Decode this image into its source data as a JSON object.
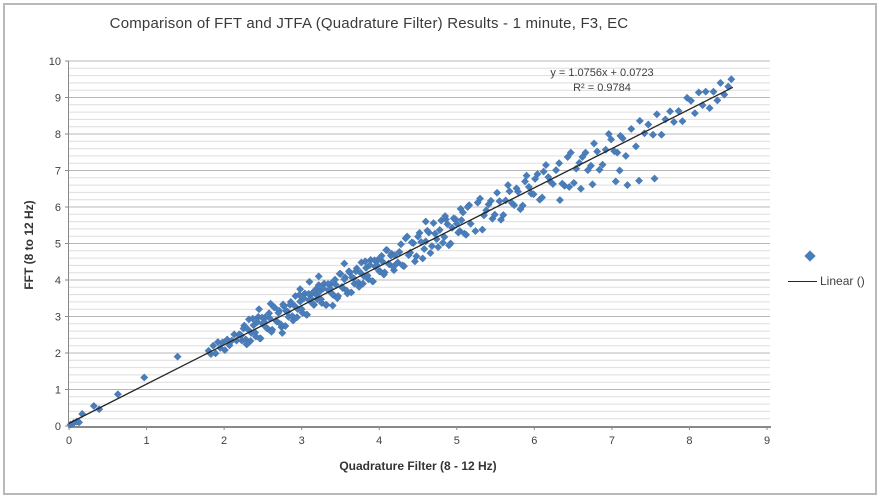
{
  "window": {
    "background": "#ffffff",
    "border_color": "#b9b9b9"
  },
  "chart_data": {
    "type": "scatter",
    "title": "Comparison of FFT and JTFA (Quadrature Filter) Results - 1 minute, F3, EC",
    "xlabel": "Quadrature Filter (8 - 12 Hz)",
    "ylabel": "FFT (8 to 12 Hz)",
    "xlim": [
      0,
      9
    ],
    "ylim": [
      0,
      10
    ],
    "x_ticks": [
      0,
      1,
      2,
      3,
      4,
      5,
      6,
      7,
      8,
      9
    ],
    "y_ticks": [
      0,
      1,
      2,
      3,
      4,
      5,
      6,
      7,
      8,
      9,
      10
    ],
    "y_minor_unit": 0.2,
    "grid": "horizontal-only",
    "legend": {
      "position": "right",
      "series_label": "",
      "line_label": "Linear ()"
    },
    "annotation": {
      "equation": "y = 1.0756x + 0.0723",
      "r_squared": "R² = 0.9784"
    },
    "trendline": {
      "slope": 1.0756,
      "intercept": 0.0723,
      "x_start": 0,
      "x_end": 8.56
    },
    "colors": {
      "marker": "#4a7ebb",
      "marker_edge": "#3d6ca6",
      "trendline": "#262626",
      "gridline_major": "#b8b8b8",
      "gridline_minor": "#dddddd",
      "axis_line": "#898989",
      "text": "#3f3f3f"
    },
    "points": [
      [
        0.02,
        0.04
      ],
      [
        0.06,
        0.08
      ],
      [
        0.1,
        0.12
      ],
      [
        0.13,
        0.1
      ],
      [
        0.17,
        0.33
      ],
      [
        0.32,
        0.55
      ],
      [
        0.39,
        0.46
      ],
      [
        0.63,
        0.87
      ],
      [
        0.97,
        1.33
      ],
      [
        1.4,
        1.9
      ],
      [
        1.8,
        2.06
      ],
      [
        1.83,
        1.97
      ],
      [
        1.86,
        2.2
      ],
      [
        1.89,
        1.99
      ],
      [
        1.92,
        2.3
      ],
      [
        1.95,
        2.14
      ],
      [
        1.98,
        2.29
      ],
      [
        2.01,
        2.08
      ],
      [
        2.04,
        2.37
      ],
      [
        2.07,
        2.21
      ],
      [
        2.1,
        2.34
      ],
      [
        2.13,
        2.51
      ],
      [
        2.16,
        2.34
      ],
      [
        2.19,
        2.5
      ],
      [
        2.2,
        2.51
      ],
      [
        2.23,
        2.34
      ],
      [
        2.26,
        2.75
      ],
      [
        2.29,
        2.24
      ],
      [
        2.32,
        2.92
      ],
      [
        2.35,
        2.55
      ],
      [
        2.38,
        2.76
      ],
      [
        2.41,
        2.45
      ],
      [
        2.44,
        2.99
      ],
      [
        2.47,
        2.4
      ],
      [
        2.5,
        2.79
      ],
      [
        2.53,
        2.98
      ],
      [
        2.56,
        2.67
      ],
      [
        2.59,
        2.95
      ],
      [
        2.62,
        2.64
      ],
      [
        2.65,
        3.25
      ],
      [
        2.68,
        2.86
      ],
      [
        2.71,
        3.16
      ],
      [
        2.74,
        2.71
      ],
      [
        2.77,
        3.28
      ],
      [
        2.8,
        3.15
      ],
      [
        2.83,
        2.99
      ],
      [
        2.86,
        3.4
      ],
      [
        2.89,
        2.89
      ],
      [
        2.92,
        3.56
      ],
      [
        2.95,
        3.2
      ],
      [
        2.98,
        3.41
      ],
      [
        3.01,
        3.1
      ],
      [
        3.04,
        3.63
      ],
      [
        3.07,
        3.05
      ],
      [
        3.1,
        3.44
      ],
      [
        3.13,
        3.63
      ],
      [
        3.16,
        3.32
      ],
      [
        3.19,
        3.59
      ],
      [
        2.22,
        2.48
      ],
      [
        2.25,
        2.67
      ],
      [
        2.28,
        2.37
      ],
      [
        2.31,
        2.64
      ],
      [
        2.34,
        2.33
      ],
      [
        2.37,
        2.94
      ],
      [
        2.4,
        2.56
      ],
      [
        2.43,
        2.85
      ],
      [
        2.46,
        2.4
      ],
      [
        2.49,
        2.97
      ],
      [
        2.52,
        2.85
      ],
      [
        2.55,
        2.68
      ],
      [
        2.58,
        3.09
      ],
      [
        2.61,
        2.58
      ],
      [
        2.64,
        3.26
      ],
      [
        2.67,
        2.89
      ],
      [
        2.7,
        3.1
      ],
      [
        2.73,
        2.79
      ],
      [
        2.76,
        3.33
      ],
      [
        2.79,
        2.74
      ],
      [
        2.82,
        3.13
      ],
      [
        2.85,
        3.32
      ],
      [
        2.88,
        3.01
      ],
      [
        2.91,
        3.29
      ],
      [
        2.94,
        2.98
      ],
      [
        2.97,
        3.59
      ],
      [
        3.0,
        3.2
      ],
      [
        3.03,
        3.5
      ],
      [
        3.06,
        3.05
      ],
      [
        3.09,
        3.62
      ],
      [
        3.12,
        3.49
      ],
      [
        3.15,
        3.33
      ],
      [
        3.18,
        3.74
      ],
      [
        3.2,
        3.47
      ],
      [
        3.23,
        3.68
      ],
      [
        3.26,
        3.37
      ],
      [
        3.29,
        3.9
      ],
      [
        3.32,
        3.32
      ],
      [
        3.35,
        3.71
      ],
      [
        3.38,
        3.9
      ],
      [
        3.41,
        3.59
      ],
      [
        3.44,
        3.87
      ],
      [
        3.47,
        3.56
      ],
      [
        3.5,
        4.17
      ],
      [
        3.53,
        3.78
      ],
      [
        3.56,
        4.07
      ],
      [
        3.59,
        3.63
      ],
      [
        3.62,
        4.2
      ],
      [
        3.65,
        4.07
      ],
      [
        3.68,
        3.9
      ],
      [
        3.71,
        4.32
      ],
      [
        3.74,
        3.81
      ],
      [
        3.77,
        4.48
      ],
      [
        3.8,
        4.11
      ],
      [
        3.83,
        4.33
      ],
      [
        3.86,
        4.02
      ],
      [
        3.89,
        4.55
      ],
      [
        3.92,
        3.96
      ],
      [
        3.95,
        4.36
      ],
      [
        3.98,
        4.55
      ],
      [
        4.01,
        4.24
      ],
      [
        4.04,
        4.51
      ],
      [
        4.07,
        4.21
      ],
      [
        4.1,
        4.82
      ],
      [
        4.13,
        4.43
      ],
      [
        4.16,
        4.72
      ],
      [
        4.19,
        4.27
      ],
      [
        3.22,
        3.86
      ],
      [
        3.25,
        3.47
      ],
      [
        3.28,
        3.77
      ],
      [
        3.31,
        3.32
      ],
      [
        3.34,
        3.89
      ],
      [
        3.37,
        3.76
      ],
      [
        3.4,
        3.6
      ],
      [
        3.43,
        4.01
      ],
      [
        3.46,
        3.5
      ],
      [
        3.49,
        4.17
      ],
      [
        3.52,
        3.81
      ],
      [
        3.55,
        4.02
      ],
      [
        3.58,
        3.71
      ],
      [
        3.61,
        4.24
      ],
      [
        3.64,
        3.66
      ],
      [
        3.67,
        4.05
      ],
      [
        3.7,
        4.24
      ],
      [
        3.73,
        3.93
      ],
      [
        3.76,
        4.2
      ],
      [
        3.79,
        3.9
      ],
      [
        3.82,
        4.51
      ],
      [
        3.85,
        4.12
      ],
      [
        3.88,
        4.41
      ],
      [
        3.91,
        3.97
      ],
      [
        3.94,
        4.54
      ],
      [
        3.97,
        4.41
      ],
      [
        4.0,
        4.24
      ],
      [
        4.03,
        4.66
      ],
      [
        4.06,
        4.15
      ],
      [
        4.09,
        4.82
      ],
      [
        4.12,
        4.45
      ],
      [
        4.15,
        4.67
      ],
      [
        4.18,
        4.36
      ],
      [
        4.2,
        4.68
      ],
      [
        4.24,
        4.48
      ],
      [
        4.28,
        4.98
      ],
      [
        4.32,
        4.38
      ],
      [
        4.36,
        5.19
      ],
      [
        4.4,
        4.75
      ],
      [
        4.44,
        5.01
      ],
      [
        4.48,
        4.65
      ],
      [
        4.52,
        5.29
      ],
      [
        4.56,
        4.59
      ],
      [
        4.6,
        5.06
      ],
      [
        4.64,
        5.3
      ],
      [
        4.68,
        4.93
      ],
      [
        4.72,
        5.27
      ],
      [
        4.76,
        4.9
      ],
      [
        4.8,
        5.63
      ],
      [
        4.84,
        5.18
      ],
      [
        4.88,
        5.53
      ],
      [
        4.92,
        5.0
      ],
      [
        4.96,
        5.69
      ],
      [
        5.0,
        5.54
      ],
      [
        5.04,
        5.34
      ],
      [
        5.08,
        5.85
      ],
      [
        5.12,
        5.24
      ],
      [
        5.16,
        6.05
      ],
      [
        4.22,
        4.44
      ],
      [
        4.26,
        4.77
      ],
      [
        4.3,
        4.4
      ],
      [
        4.34,
        5.14
      ],
      [
        4.38,
        4.68
      ],
      [
        4.42,
        5.03
      ],
      [
        4.46,
        4.51
      ],
      [
        4.5,
        5.19
      ],
      [
        4.54,
        5.04
      ],
      [
        4.58,
        4.85
      ],
      [
        4.62,
        5.35
      ],
      [
        4.66,
        4.74
      ],
      [
        4.7,
        5.56
      ],
      [
        4.74,
        5.12
      ],
      [
        4.78,
        5.37
      ],
      [
        4.82,
        5.02
      ],
      [
        4.86,
        5.66
      ],
      [
        4.9,
        4.95
      ],
      [
        4.94,
        5.43
      ],
      [
        4.98,
        5.67
      ],
      [
        5.02,
        5.3
      ],
      [
        5.06,
        5.64
      ],
      [
        5.1,
        5.27
      ],
      [
        5.14,
        6.0
      ],
      [
        5.18,
        5.54
      ],
      [
        5.24,
        5.34
      ],
      [
        5.3,
        6.23
      ],
      [
        5.35,
        5.77
      ],
      [
        5.41,
        6.07
      ],
      [
        5.46,
        5.68
      ],
      [
        5.52,
        6.39
      ],
      [
        5.57,
        5.65
      ],
      [
        5.63,
        6.18
      ],
      [
        5.68,
        6.43
      ],
      [
        5.74,
        6.05
      ],
      [
        5.79,
        6.42
      ],
      [
        5.85,
        6.04
      ],
      [
        5.9,
        6.86
      ],
      [
        5.96,
        6.37
      ],
      [
        6.01,
        6.77
      ],
      [
        6.07,
        6.2
      ],
      [
        6.12,
        6.97
      ],
      [
        6.18,
        6.82
      ],
      [
        5.27,
        6.12
      ],
      [
        5.33,
        5.38
      ],
      [
        5.38,
        5.91
      ],
      [
        5.44,
        6.17
      ],
      [
        5.49,
        5.79
      ],
      [
        5.55,
        6.16
      ],
      [
        5.6,
        5.78
      ],
      [
        5.66,
        6.6
      ],
      [
        5.71,
        6.11
      ],
      [
        5.77,
        6.51
      ],
      [
        5.82,
        5.94
      ],
      [
        5.88,
        6.7
      ],
      [
        5.93,
        6.55
      ],
      [
        5.99,
        6.35
      ],
      [
        6.04,
        6.9
      ],
      [
        6.1,
        6.26
      ],
      [
        6.15,
        7.15
      ],
      [
        6.21,
        6.69
      ],
      [
        6.24,
        6.63
      ],
      [
        6.32,
        7.2
      ],
      [
        6.39,
        6.58
      ],
      [
        6.47,
        7.49
      ],
      [
        6.54,
        7.05
      ],
      [
        6.62,
        7.37
      ],
      [
        6.69,
        7.01
      ],
      [
        6.77,
        7.74
      ],
      [
        6.84,
        7.02
      ],
      [
        6.92,
        7.57
      ],
      [
        6.99,
        7.85
      ],
      [
        7.07,
        7.49
      ],
      [
        7.14,
        7.88
      ],
      [
        6.28,
        7.01
      ],
      [
        6.36,
        6.64
      ],
      [
        6.43,
        7.37
      ],
      [
        6.51,
        6.66
      ],
      [
        6.58,
        7.21
      ],
      [
        6.66,
        7.49
      ],
      [
        6.73,
        7.13
      ],
      [
        6.81,
        7.52
      ],
      [
        6.88,
        7.16
      ],
      [
        6.96,
        8.0
      ],
      [
        7.03,
        7.53
      ],
      [
        7.11,
        7.95
      ],
      [
        7.18,
        7.4
      ],
      [
        7.25,
        8.14
      ],
      [
        7.31,
        7.66
      ],
      [
        7.36,
        8.36
      ],
      [
        7.42,
        8.02
      ],
      [
        7.47,
        8.26
      ],
      [
        7.53,
        7.98
      ],
      [
        7.58,
        8.54
      ],
      [
        7.64,
        7.98
      ],
      [
        7.69,
        8.4
      ],
      [
        7.75,
        8.62
      ],
      [
        7.8,
        8.33
      ],
      [
        7.86,
        8.63
      ],
      [
        7.91,
        8.35
      ],
      [
        7.97,
        8.99
      ],
      [
        8.02,
        8.91
      ],
      [
        8.07,
        8.57
      ],
      [
        8.12,
        9.14
      ],
      [
        8.17,
        8.79
      ],
      [
        8.21,
        9.16
      ],
      [
        8.26,
        8.71
      ],
      [
        8.31,
        9.16
      ],
      [
        8.36,
        8.92
      ],
      [
        8.4,
        9.4
      ],
      [
        8.45,
        9.08
      ],
      [
        8.5,
        9.3
      ],
      [
        8.54,
        9.5
      ],
      [
        6.33,
        6.19
      ],
      [
        6.45,
        6.55
      ],
      [
        6.6,
        6.5
      ],
      [
        6.75,
        6.62
      ],
      [
        7.05,
        6.7
      ],
      [
        7.2,
        6.6
      ],
      [
        7.35,
        6.72
      ],
      [
        7.55,
        6.78
      ],
      [
        7.1,
        7.0
      ],
      [
        2.98,
        3.75
      ],
      [
        3.1,
        3.95
      ],
      [
        3.22,
        4.1
      ],
      [
        2.6,
        3.35
      ],
      [
        2.45,
        3.2
      ],
      [
        4.6,
        5.6
      ],
      [
        3.55,
        4.45
      ],
      [
        2.3,
        2.25
      ],
      [
        2.75,
        2.55
      ],
      [
        3.4,
        3.3
      ],
      [
        5.05,
        5.95
      ],
      [
        4.85,
        5.75
      ]
    ]
  }
}
